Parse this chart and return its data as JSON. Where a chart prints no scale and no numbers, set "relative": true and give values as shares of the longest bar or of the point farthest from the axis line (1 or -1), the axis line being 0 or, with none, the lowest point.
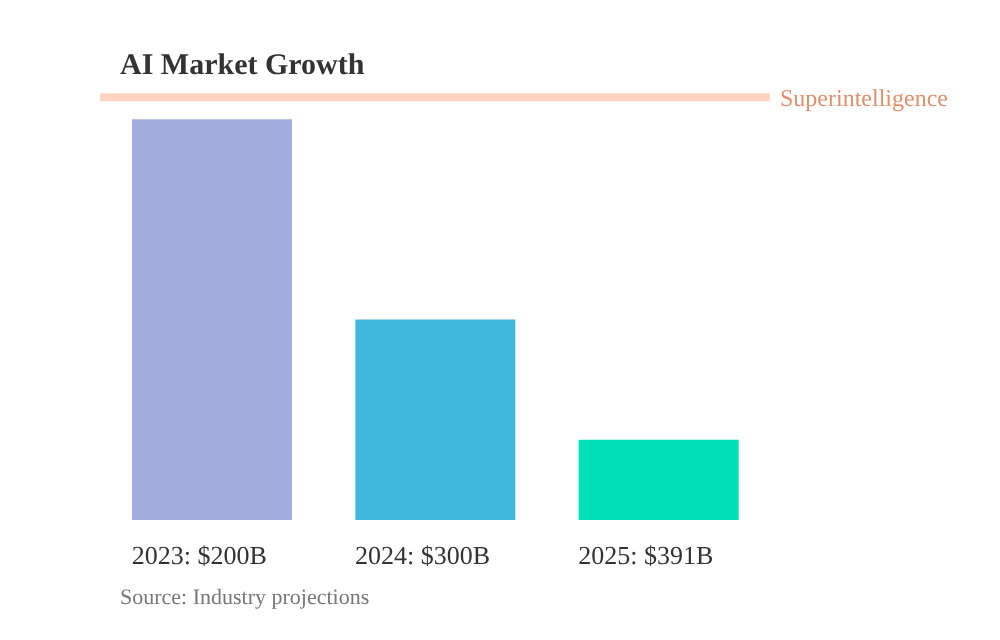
{
  "chart_data": {
    "type": "bar",
    "title": "AI Market Growth",
    "categories": [
      "2023: $200B",
      "2024: $300B",
      "2025: $391B"
    ],
    "values": [
      1,
      0.5,
      0.2
    ],
    "colors": [
      "#a3acdf",
      "#41b8dd",
      "#00e0b6"
    ],
    "relative": true,
    "ref_lines": [
      {
        "axis": "y",
        "value": 1.055,
        "label": "Superintelligence",
        "color": "#ffd5c2"
      }
    ],
    "annotations": [
      "Source: Industry projections"
    ],
    "grid": false,
    "legend": false
  }
}
